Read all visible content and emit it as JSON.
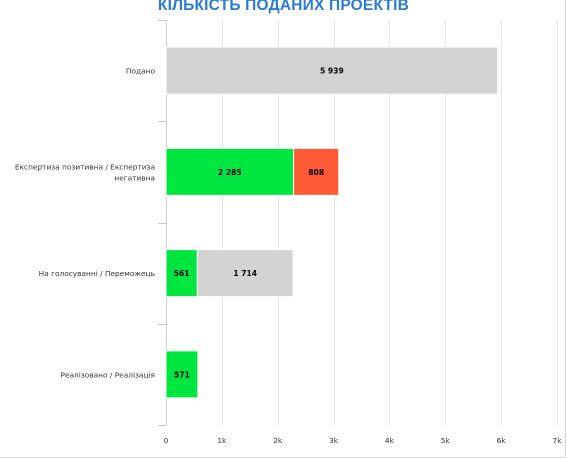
{
  "title": "КІЛЬКІСТЬ ПОДАНИХ ПРОЕКТІВ",
  "chart_data": {
    "type": "bar",
    "orientation": "horizontal",
    "stacked": true,
    "title": "КІЛЬКІСТЬ ПОДАНИХ ПРОЕКТІВ",
    "xlabel": "",
    "ylabel": "",
    "xlim": [
      0,
      7000
    ],
    "x_ticks": [
      "0",
      "1k",
      "2k",
      "3k",
      "4k",
      "5k",
      "6k",
      "7k"
    ],
    "x_tick_values": [
      0,
      1000,
      2000,
      3000,
      4000,
      5000,
      6000,
      7000
    ],
    "grid": "vertical",
    "legend": "none",
    "categories": [
      [
        "Подано"
      ],
      [
        "Експертиза позитивна / Експертиза",
        "негативна"
      ],
      [
        "На голосуванні / Переможець"
      ],
      [
        "Реалізовано / Реалізація"
      ]
    ],
    "bars": [
      [
        {
          "value": 5939,
          "label": "5 939",
          "color": "#d3d3d3"
        }
      ],
      [
        {
          "value": 2285,
          "label": "2 285",
          "color": "#00e640"
        },
        {
          "value": 808,
          "label": "808",
          "color": "#ff5a36"
        }
      ],
      [
        {
          "value": 561,
          "label": "561",
          "color": "#00e640"
        },
        {
          "value": 1714,
          "label": "1 714",
          "color": "#d3d3d3"
        }
      ],
      [
        {
          "value": 571,
          "label": "571",
          "color": "#00e640"
        }
      ]
    ]
  }
}
